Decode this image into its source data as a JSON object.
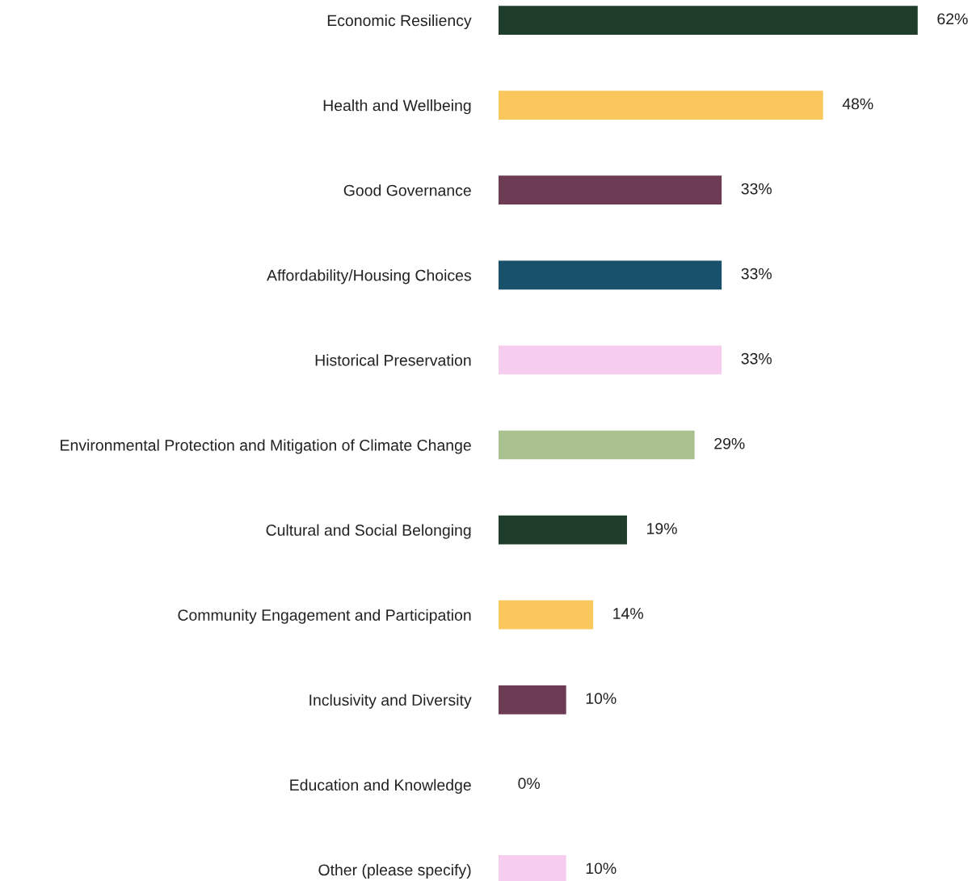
{
  "chart_data": {
    "type": "bar",
    "orientation": "horizontal",
    "categories": [
      "Economic Resiliency",
      "Health and Wellbeing",
      "Good Governance",
      "Affordability/Housing Choices",
      "Historical Preservation",
      "Environmental Protection and Mitigation of Climate Change",
      "Cultural and Social Belonging",
      "Community Engagement and Participation",
      "Inclusivity and Diversity",
      "Education and Knowledge",
      "Other (please specify)"
    ],
    "values": [
      62,
      48,
      33,
      33,
      33,
      29,
      19,
      14,
      10,
      0,
      10
    ],
    "value_labels": [
      "62%",
      "48%",
      "33%",
      "33%",
      "33%",
      "29%",
      "19%",
      "14%",
      "10%",
      "0%",
      "10%"
    ],
    "colors": [
      "#1f3d2b",
      "#f9c75c",
      "#6e3b55",
      "#17516b",
      "#f7cdef",
      "#a9c08f",
      "#1f3d2b",
      "#f9c75c",
      "#6e3b55",
      "#17516b",
      "#f7cdef"
    ],
    "grid": false,
    "legend": false
  }
}
